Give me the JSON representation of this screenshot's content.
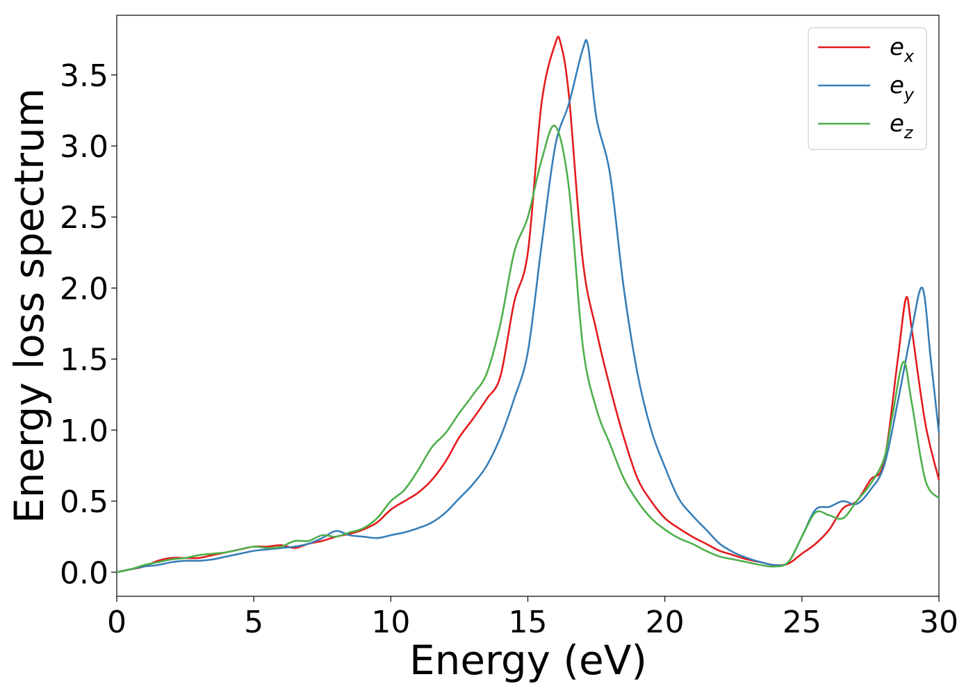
{
  "chart_data": {
    "type": "line",
    "xlabel": "Energy (eV)",
    "ylabel": "Energy loss spectrum",
    "xlim": [
      0,
      30
    ],
    "ylim": [
      -0.17,
      3.92
    ],
    "xticks": [
      0,
      5,
      10,
      15,
      20,
      25,
      30
    ],
    "xtick_labels": [
      "0",
      "5",
      "10",
      "15",
      "20",
      "25",
      "30"
    ],
    "yticks": [
      0.0,
      0.5,
      1.0,
      1.5,
      2.0,
      2.5,
      3.0,
      3.5
    ],
    "ytick_labels": [
      "0.0",
      "0.5",
      "1.0",
      "1.5",
      "2.0",
      "2.5",
      "3.0",
      "3.5"
    ],
    "grid": false,
    "legend_position": "top-right",
    "series": [
      {
        "name": "e_x",
        "label_base": "e",
        "label_sub": "x",
        "color": "#e41a1c",
        "points": [
          [
            0,
            0
          ],
          [
            0.5,
            0.02
          ],
          [
            1,
            0.04
          ],
          [
            1.5,
            0.08
          ],
          [
            2,
            0.1
          ],
          [
            2.5,
            0.1
          ],
          [
            3,
            0.1
          ],
          [
            3.5,
            0.12
          ],
          [
            4,
            0.14
          ],
          [
            4.5,
            0.16
          ],
          [
            5,
            0.18
          ],
          [
            5.5,
            0.18
          ],
          [
            6,
            0.19
          ],
          [
            6.5,
            0.17
          ],
          [
            7,
            0.2
          ],
          [
            7.5,
            0.22
          ],
          [
            8,
            0.25
          ],
          [
            8.5,
            0.27
          ],
          [
            9,
            0.3
          ],
          [
            9.5,
            0.35
          ],
          [
            10,
            0.44
          ],
          [
            10.5,
            0.5
          ],
          [
            11,
            0.56
          ],
          [
            11.5,
            0.65
          ],
          [
            12,
            0.78
          ],
          [
            12.5,
            0.95
          ],
          [
            13,
            1.08
          ],
          [
            13.5,
            1.22
          ],
          [
            14,
            1.38
          ],
          [
            14.5,
            1.9
          ],
          [
            15,
            2.25
          ],
          [
            15.5,
            3.3
          ],
          [
            16,
            3.72
          ],
          [
            16.2,
            3.72
          ],
          [
            16.5,
            3.35
          ],
          [
            17,
            2.2
          ],
          [
            17.5,
            1.7
          ],
          [
            18,
            1.3
          ],
          [
            18.5,
            0.95
          ],
          [
            19,
            0.66
          ],
          [
            19.5,
            0.5
          ],
          [
            20,
            0.38
          ],
          [
            20.5,
            0.31
          ],
          [
            21,
            0.25
          ],
          [
            21.5,
            0.2
          ],
          [
            22,
            0.15
          ],
          [
            22.5,
            0.12
          ],
          [
            23,
            0.09
          ],
          [
            23.5,
            0.07
          ],
          [
            24,
            0.05
          ],
          [
            24.5,
            0.06
          ],
          [
            25,
            0.13
          ],
          [
            25.5,
            0.2
          ],
          [
            26,
            0.3
          ],
          [
            26.5,
            0.45
          ],
          [
            27,
            0.5
          ],
          [
            27.5,
            0.65
          ],
          [
            28,
            0.78
          ],
          [
            28.5,
            1.5
          ],
          [
            28.8,
            1.93
          ],
          [
            29,
            1.72
          ],
          [
            29.5,
            1.05
          ],
          [
            30,
            0.65
          ]
        ]
      },
      {
        "name": "e_y",
        "label_base": "e",
        "label_sub": "y",
        "color": "#377eb8",
        "points": [
          [
            0,
            0
          ],
          [
            0.5,
            0.02
          ],
          [
            1,
            0.04
          ],
          [
            1.5,
            0.05
          ],
          [
            2,
            0.07
          ],
          [
            2.5,
            0.08
          ],
          [
            3,
            0.08
          ],
          [
            3.5,
            0.09
          ],
          [
            4,
            0.11
          ],
          [
            4.5,
            0.13
          ],
          [
            5,
            0.15
          ],
          [
            5.5,
            0.16
          ],
          [
            6,
            0.17
          ],
          [
            6.5,
            0.18
          ],
          [
            7,
            0.2
          ],
          [
            7.5,
            0.24
          ],
          [
            8,
            0.29
          ],
          [
            8.5,
            0.26
          ],
          [
            9,
            0.25
          ],
          [
            9.5,
            0.24
          ],
          [
            10,
            0.26
          ],
          [
            10.5,
            0.28
          ],
          [
            11,
            0.31
          ],
          [
            11.5,
            0.35
          ],
          [
            12,
            0.42
          ],
          [
            12.5,
            0.52
          ],
          [
            13,
            0.62
          ],
          [
            13.5,
            0.75
          ],
          [
            14,
            0.95
          ],
          [
            14.5,
            1.22
          ],
          [
            15,
            1.55
          ],
          [
            15.5,
            2.3
          ],
          [
            16,
            3.0
          ],
          [
            16.5,
            3.3
          ],
          [
            17,
            3.68
          ],
          [
            17.2,
            3.7
          ],
          [
            17.5,
            3.2
          ],
          [
            18,
            2.8
          ],
          [
            18.5,
            2.0
          ],
          [
            19,
            1.4
          ],
          [
            19.5,
            1.0
          ],
          [
            20,
            0.74
          ],
          [
            20.5,
            0.52
          ],
          [
            21,
            0.4
          ],
          [
            21.5,
            0.3
          ],
          [
            22,
            0.2
          ],
          [
            22.5,
            0.14
          ],
          [
            23,
            0.1
          ],
          [
            23.5,
            0.07
          ],
          [
            24,
            0.05
          ],
          [
            24.5,
            0.07
          ],
          [
            25,
            0.25
          ],
          [
            25.5,
            0.44
          ],
          [
            26,
            0.46
          ],
          [
            26.5,
            0.5
          ],
          [
            27,
            0.48
          ],
          [
            27.5,
            0.58
          ],
          [
            28,
            0.75
          ],
          [
            28.5,
            1.2
          ],
          [
            29,
            1.7
          ],
          [
            29.4,
            2.0
          ],
          [
            29.7,
            1.5
          ],
          [
            30,
            0.98
          ]
        ]
      },
      {
        "name": "e_z",
        "label_base": "e",
        "label_sub": "z",
        "color": "#4daf4a",
        "points": [
          [
            0,
            0
          ],
          [
            0.5,
            0.02
          ],
          [
            1,
            0.05
          ],
          [
            1.5,
            0.07
          ],
          [
            2,
            0.09
          ],
          [
            2.5,
            0.1
          ],
          [
            3,
            0.12
          ],
          [
            3.5,
            0.13
          ],
          [
            4,
            0.14
          ],
          [
            4.5,
            0.16
          ],
          [
            5,
            0.18
          ],
          [
            5.5,
            0.17
          ],
          [
            6,
            0.18
          ],
          [
            6.5,
            0.22
          ],
          [
            7,
            0.22
          ],
          [
            7.5,
            0.26
          ],
          [
            8,
            0.25
          ],
          [
            8.5,
            0.28
          ],
          [
            9,
            0.31
          ],
          [
            9.5,
            0.38
          ],
          [
            10,
            0.5
          ],
          [
            10.5,
            0.58
          ],
          [
            11,
            0.72
          ],
          [
            11.5,
            0.88
          ],
          [
            12,
            0.98
          ],
          [
            12.5,
            1.12
          ],
          [
            13,
            1.25
          ],
          [
            13.5,
            1.4
          ],
          [
            14,
            1.75
          ],
          [
            14.5,
            2.25
          ],
          [
            15,
            2.5
          ],
          [
            15.5,
            2.9
          ],
          [
            16,
            3.14
          ],
          [
            16.5,
            2.7
          ],
          [
            17,
            1.6
          ],
          [
            17.5,
            1.15
          ],
          [
            18,
            0.9
          ],
          [
            18.5,
            0.66
          ],
          [
            19,
            0.5
          ],
          [
            19.5,
            0.38
          ],
          [
            20,
            0.3
          ],
          [
            20.5,
            0.24
          ],
          [
            21,
            0.2
          ],
          [
            21.5,
            0.15
          ],
          [
            22,
            0.11
          ],
          [
            22.5,
            0.09
          ],
          [
            23,
            0.07
          ],
          [
            23.5,
            0.05
          ],
          [
            24,
            0.04
          ],
          [
            24.5,
            0.07
          ],
          [
            25,
            0.25
          ],
          [
            25.5,
            0.42
          ],
          [
            26,
            0.4
          ],
          [
            26.5,
            0.38
          ],
          [
            27,
            0.5
          ],
          [
            27.5,
            0.62
          ],
          [
            28,
            0.8
          ],
          [
            28.3,
            1.1
          ],
          [
            28.7,
            1.48
          ],
          [
            29,
            1.2
          ],
          [
            29.5,
            0.65
          ],
          [
            30,
            0.52
          ]
        ]
      }
    ]
  }
}
